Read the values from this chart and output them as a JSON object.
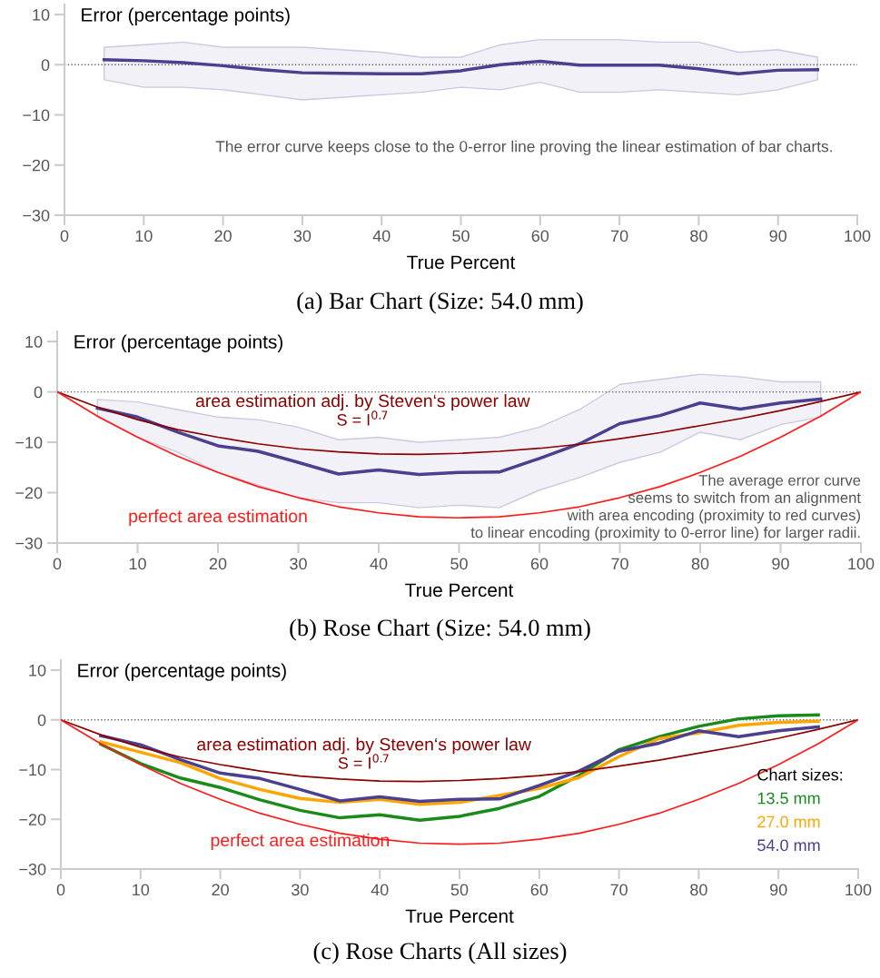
{
  "chart_data": [
    {
      "type": "line",
      "title": "(a) Bar Chart (Size: 54.0 mm)",
      "xlabel": "True Percent",
      "ylabel": "Error (percentage points)",
      "xlim": [
        0,
        100
      ],
      "ylim": [
        -30,
        12
      ],
      "xticks": [
        0,
        10,
        20,
        30,
        40,
        50,
        60,
        70,
        80,
        90,
        100
      ],
      "yticks": [
        {
          "value": -30,
          "label": "−30"
        },
        {
          "value": -20,
          "label": "−20"
        },
        {
          "value": -10,
          "label": "−10"
        },
        0,
        10
      ],
      "grid": false,
      "legend": false,
      "ref_lines": [
        {
          "axis": "y",
          "value": 0,
          "color": "#666666",
          "line_style": "dotted"
        }
      ],
      "annotations": [
        "The error curve keeps close to the 0-error line proving the linear estimation of bar charts."
      ],
      "series": [
        {
          "color": "#4b3f8f",
          "x": [
            5,
            10,
            15,
            20,
            25,
            30,
            35,
            40,
            45,
            50,
            55,
            60,
            65,
            70,
            75,
            80,
            85,
            90,
            95
          ],
          "values": [
            1.0,
            0.8,
            0.4,
            -0.2,
            -1.0,
            -1.6,
            -1.7,
            -1.8,
            -1.8,
            -1.2,
            0,
            0.7,
            -0.1,
            -0.1,
            -0.1,
            -0.8,
            -1.8,
            -1.1,
            -1.0
          ],
          "upper": [
            3.5,
            4,
            4.5,
            3.5,
            3.5,
            3.5,
            3,
            2.5,
            1.5,
            1.5,
            4,
            5,
            5,
            5,
            4.5,
            4.5,
            2.5,
            3,
            1.5
          ],
          "lower": [
            -3,
            -4.5,
            -4.5,
            -5,
            -6,
            -7,
            -6.5,
            -6,
            -5.5,
            -4.5,
            -5,
            -3.5,
            -5.5,
            -5.5,
            -5,
            -5.5,
            -6,
            -5,
            -3
          ]
        }
      ]
    },
    {
      "type": "line",
      "title": "(b) Rose Chart (Size: 54.0 mm)",
      "xlabel": "True Percent",
      "ylabel": "Error (percentage points)",
      "xlim": [
        0,
        100
      ],
      "ylim": [
        -30,
        12
      ],
      "xticks": [
        0,
        10,
        20,
        30,
        40,
        50,
        60,
        70,
        80,
        90,
        100
      ],
      "yticks": [
        {
          "value": -30,
          "label": "−30"
        },
        {
          "value": -20,
          "label": "−20"
        },
        {
          "value": -10,
          "label": "−10"
        },
        0,
        10
      ],
      "grid": false,
      "legend": false,
      "ref_lines": [
        {
          "axis": "y",
          "value": 0,
          "color": "#666666",
          "line_style": "dotted"
        }
      ],
      "annotations": [
        "area estimation adj. by Steven‘s power law",
        "S = I$^{0.7}$",
        "perfect area estimation",
        "The average error curve\nseems to switch from an alignment\nwith area encoding (proximity to red curves)\nto linear encoding (proximity to 0-error line) for larger radii."
      ],
      "series": [
        {
          "color": "#4b3f8f",
          "x": [
            5,
            10,
            15,
            20,
            25,
            30,
            35,
            40,
            45,
            50,
            55,
            60,
            65,
            70,
            75,
            80,
            85,
            90,
            95
          ],
          "values": [
            -3.2,
            -5,
            -8,
            -10.7,
            -11.8,
            -14,
            -16.3,
            -15.5,
            -16.4,
            -16,
            -15.9,
            -13.2,
            -10.3,
            -6.3,
            -4.7,
            -2.2,
            -3.4,
            -2.2,
            -1.4
          ],
          "upper": [
            -1.5,
            -2,
            -3.5,
            -5,
            -5.5,
            -7,
            -9.5,
            -9,
            -10,
            -9.5,
            -9,
            -7,
            -3.5,
            1.5,
            2.5,
            3.5,
            3,
            2,
            2
          ],
          "lower": [
            -5,
            -9,
            -12,
            -16,
            -18.5,
            -21,
            -22,
            -22,
            -23,
            -22.5,
            -23,
            -19.5,
            -17,
            -14,
            -12,
            -8,
            -9.5,
            -6.5,
            -5
          ]
        },
        {
          "color": "#8b0000",
          "x": [
            0,
            5,
            10,
            15,
            20,
            25,
            30,
            35,
            40,
            45,
            50,
            55,
            60,
            65,
            70,
            75,
            80,
            85,
            90,
            95,
            100
          ],
          "values": [
            0,
            -3,
            -5.5,
            -7.5,
            -9,
            -10.3,
            -11.3,
            -11.9,
            -12.3,
            -12.4,
            -12.2,
            -11.8,
            -11.2,
            -10.4,
            -9.3,
            -8.1,
            -6.7,
            -5.3,
            -3.7,
            -1.9,
            0
          ]
        },
        {
          "color": "#ff1a1a",
          "x": [
            0,
            5,
            10,
            15,
            20,
            25,
            30,
            35,
            40,
            45,
            50,
            55,
            60,
            65,
            70,
            75,
            80,
            85,
            90,
            95,
            100
          ],
          "values": [
            0,
            -4.8,
            -9,
            -12.8,
            -16,
            -18.8,
            -21,
            -22.8,
            -24,
            -24.8,
            -25,
            -24.8,
            -24,
            -22.8,
            -21,
            -18.8,
            -16,
            -12.8,
            -9,
            -4.8,
            0
          ]
        }
      ]
    },
    {
      "type": "line",
      "title": "(c) Rose Charts (All sizes)",
      "xlabel": "True Percent",
      "ylabel": "Error (percentage points)",
      "legend_title": "Chart sizes:",
      "xlim": [
        0,
        100
      ],
      "ylim": [
        -30,
        12
      ],
      "xticks": [
        0,
        10,
        20,
        30,
        40,
        50,
        60,
        70,
        80,
        90,
        100
      ],
      "yticks": [
        {
          "value": -30,
          "label": "−30"
        },
        {
          "value": -20,
          "label": "−20"
        },
        {
          "value": -10,
          "label": "−10"
        },
        0,
        10
      ],
      "grid": false,
      "legend": "lower right",
      "ref_lines": [
        {
          "axis": "y",
          "value": 0,
          "color": "#666666",
          "line_style": "dotted"
        }
      ],
      "annotations": [
        "area estimation adj. by Steven‘s power law",
        "S = I$^{0.7}$",
        "perfect area estimation"
      ],
      "series": [
        {
          "name": "13.5 mm",
          "color": "#1a8a1a",
          "x": [
            5,
            10,
            15,
            20,
            25,
            30,
            35,
            40,
            45,
            50,
            55,
            60,
            65,
            70,
            75,
            80,
            85,
            90,
            95
          ],
          "values": [
            -4.9,
            -8.8,
            -11.7,
            -13.6,
            -16.1,
            -18.2,
            -19.7,
            -19.1,
            -20.2,
            -19.4,
            -17.8,
            -15.4,
            -11.2,
            -6.0,
            -3.4,
            -1.3,
            0.2,
            0.8,
            1.0
          ]
        },
        {
          "name": "27.0 mm",
          "color": "#ffa500",
          "x": [
            5,
            10,
            15,
            20,
            25,
            30,
            35,
            40,
            45,
            50,
            55,
            60,
            65,
            70,
            75,
            80,
            85,
            90,
            95
          ],
          "values": [
            -4.4,
            -6.5,
            -8.6,
            -11.8,
            -14.0,
            -15.8,
            -16.6,
            -16.0,
            -17.0,
            -16.6,
            -15.2,
            -13.8,
            -11.6,
            -7.4,
            -3.8,
            -2.6,
            -1.1,
            -0.5,
            -0.3
          ]
        },
        {
          "name": "54.0 mm",
          "color": "#4b3f8f",
          "x": [
            5,
            10,
            15,
            20,
            25,
            30,
            35,
            40,
            45,
            50,
            55,
            60,
            65,
            70,
            75,
            80,
            85,
            90,
            95
          ],
          "values": [
            -3.2,
            -5,
            -8,
            -10.7,
            -11.8,
            -14,
            -16.3,
            -15.5,
            -16.4,
            -16,
            -15.9,
            -13.2,
            -10.3,
            -6.3,
            -4.7,
            -2.2,
            -3.4,
            -2.2,
            -1.4
          ]
        },
        {
          "color": "#8b0000",
          "x": [
            0,
            5,
            10,
            15,
            20,
            25,
            30,
            35,
            40,
            45,
            50,
            55,
            60,
            65,
            70,
            75,
            80,
            85,
            90,
            95,
            100
          ],
          "values": [
            0,
            -3,
            -5.5,
            -7.5,
            -9,
            -10.3,
            -11.3,
            -11.9,
            -12.3,
            -12.4,
            -12.2,
            -11.8,
            -11.2,
            -10.4,
            -9.3,
            -8.1,
            -6.7,
            -5.3,
            -3.7,
            -1.9,
            0
          ]
        },
        {
          "color": "#ff1a1a",
          "x": [
            0,
            5,
            10,
            15,
            20,
            25,
            30,
            35,
            40,
            45,
            50,
            55,
            60,
            65,
            70,
            75,
            80,
            85,
            90,
            95,
            100
          ],
          "values": [
            0,
            -4.8,
            -9,
            -12.8,
            -16,
            -18.8,
            -21,
            -22.8,
            -24,
            -24.8,
            -25,
            -24.8,
            -24,
            -22.8,
            -21,
            -18.8,
            -16,
            -12.8,
            -9,
            -4.8,
            0
          ]
        }
      ]
    }
  ]
}
